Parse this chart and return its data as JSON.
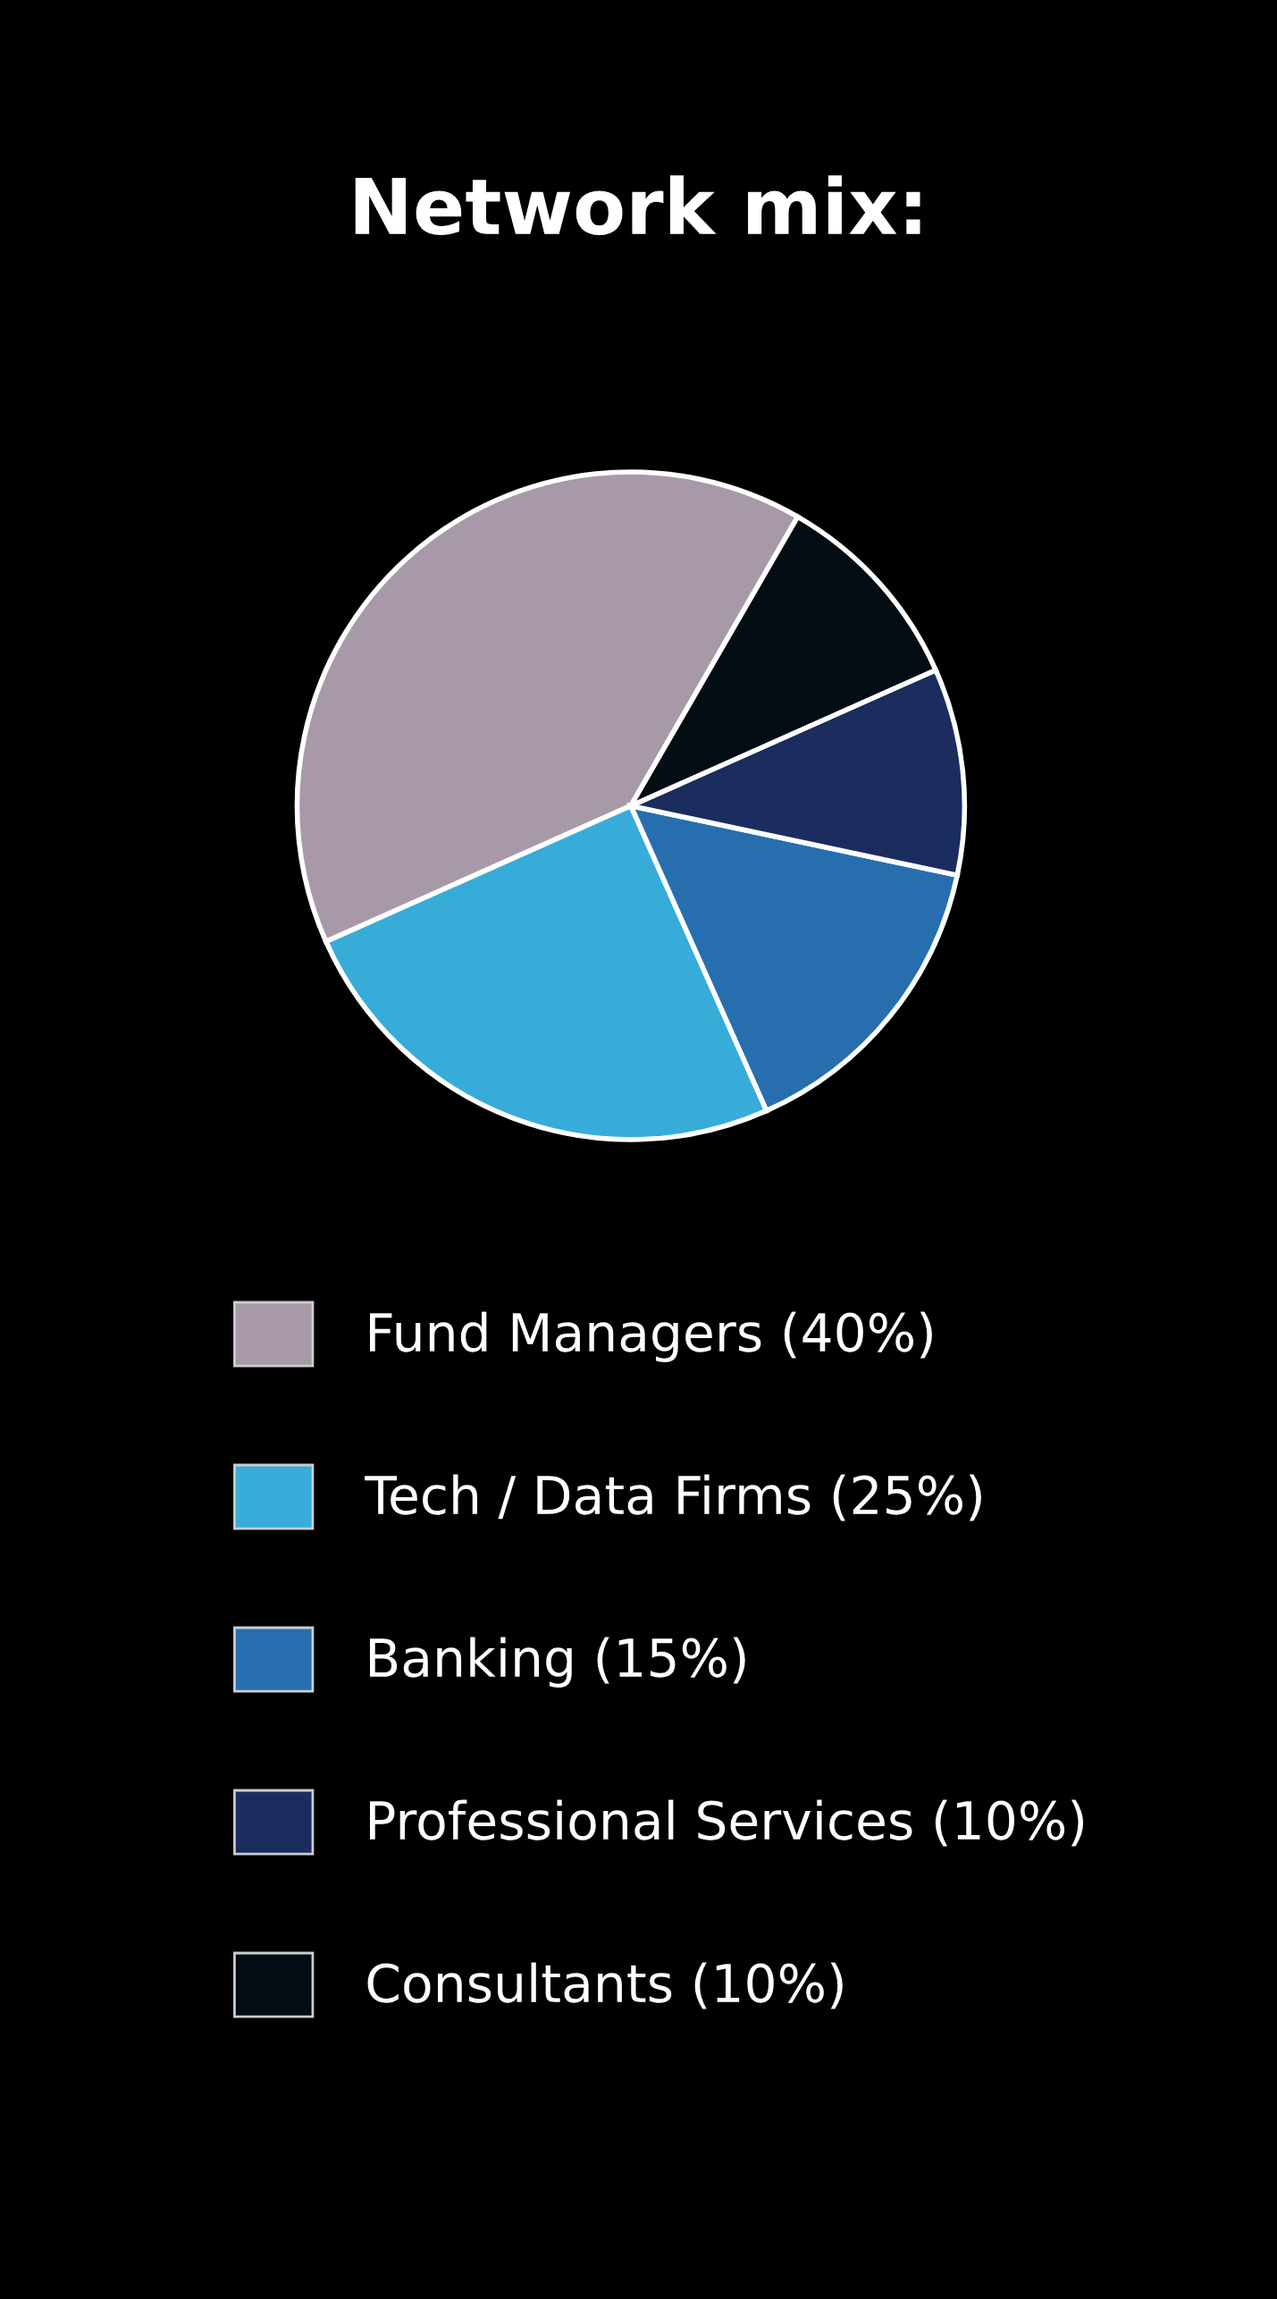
{
  "chart_data": {
    "type": "pie",
    "title": "Network mix:",
    "categories": [
      "Fund Managers (40%)",
      "Tech / Data Firms (25%)",
      "Banking (15%)",
      "Professional Services (10%)",
      "Consultants (10%)"
    ],
    "values": [
      40,
      25,
      15,
      10,
      10
    ],
    "colors": [
      "#a899a8",
      "#38acd8",
      "#276eae",
      "#1b2d5f",
      "#040c14"
    ],
    "legend": "bottom"
  }
}
